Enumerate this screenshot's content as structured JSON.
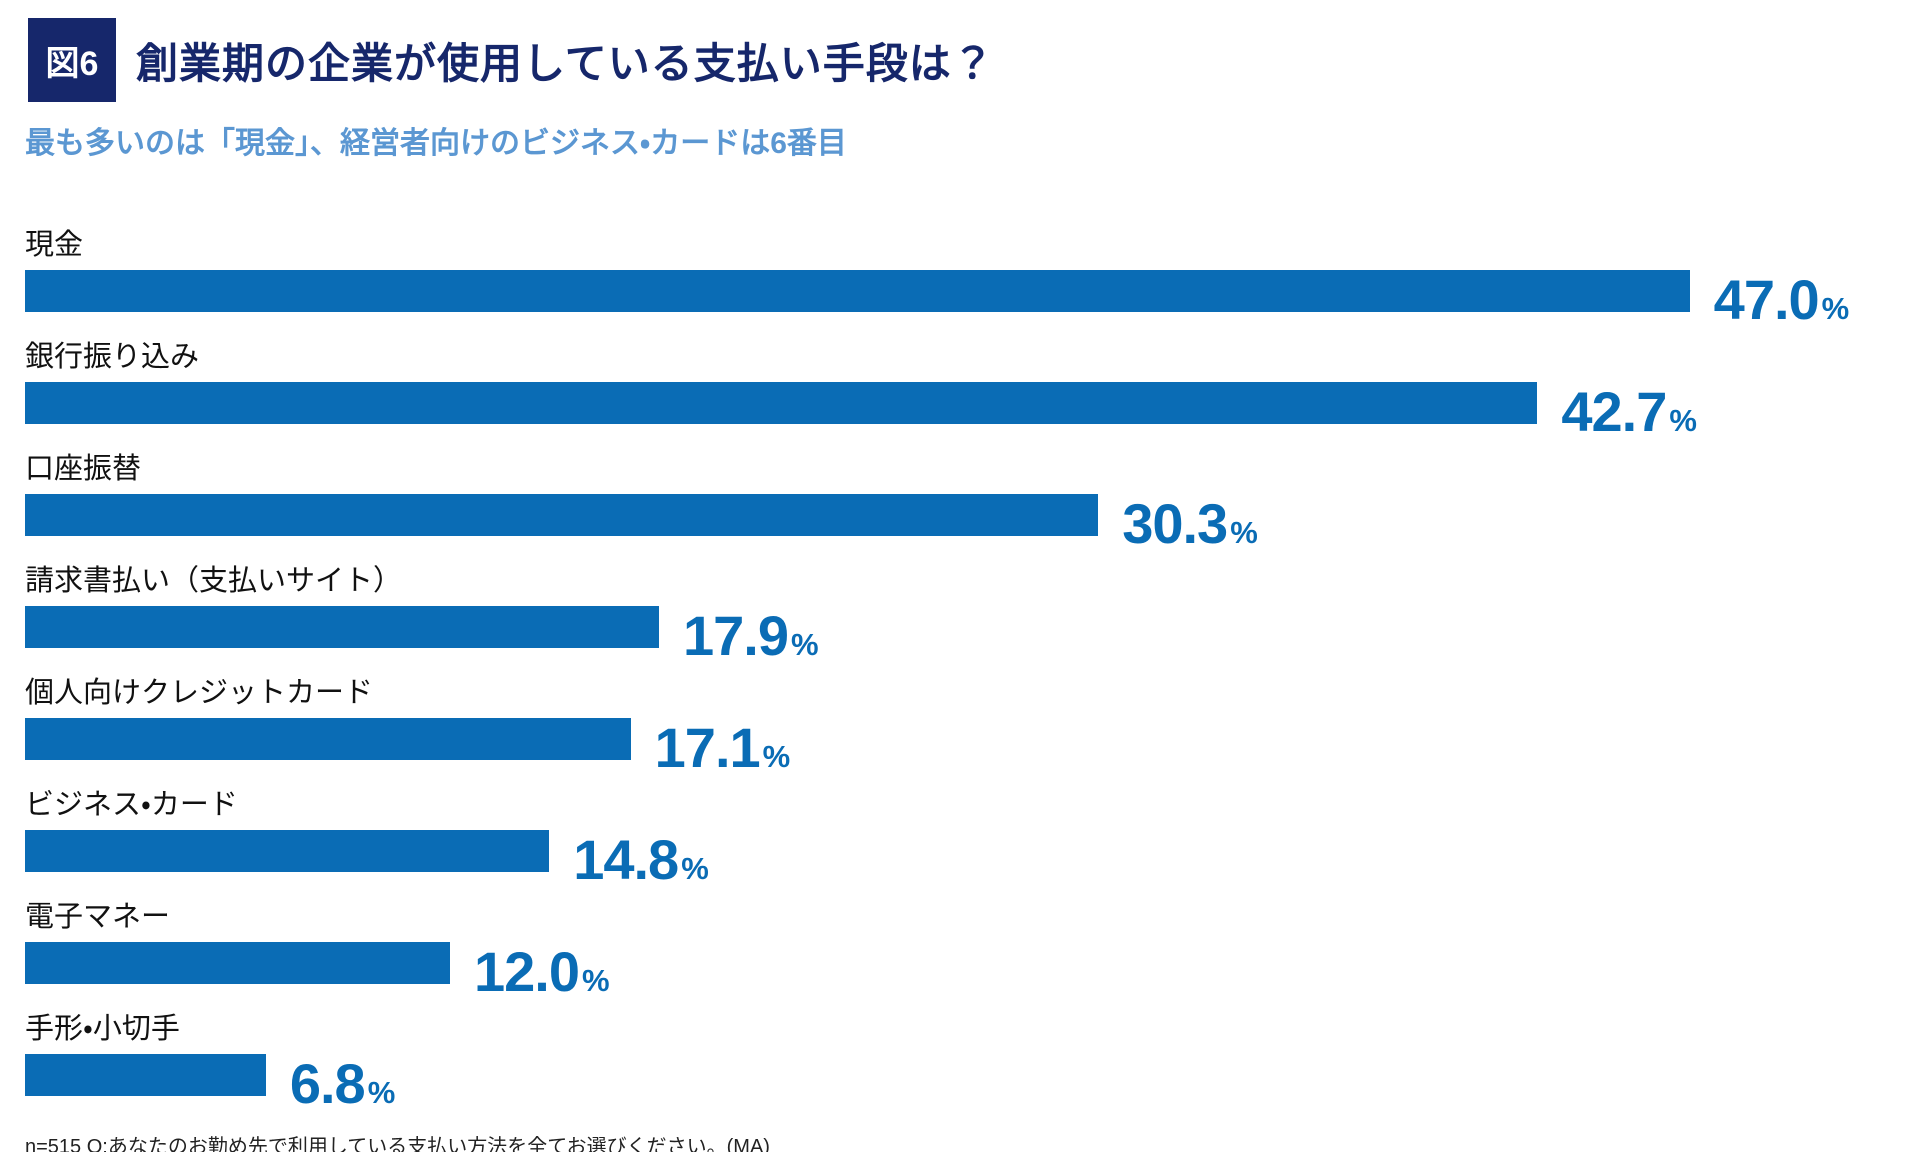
{
  "figure": {
    "badge_label": "図6",
    "title": "創業期の企業が使用している支払い手段は？",
    "subtitle": "最も多いのは「現金」、経営者向けのビジネス・カードは6番目",
    "footnote": "n=515 Q:あなたのお勤め先で利用している支払い方法を全てお選びください。(MA)"
  },
  "colors": {
    "navy": "#16276b",
    "subtitle_blue": "#5b97d2",
    "bar_blue": "#0a6cb5",
    "value_blue": "#0a6cb5"
  },
  "chart_data": {
    "type": "bar",
    "orientation": "horizontal",
    "title": "創業期の企業が使用している支払い手段は？",
    "subtitle": "最も多いのは「現金」、経営者向けのビジネス・カードは6番目",
    "categories": [
      "現金",
      "銀行振り込み",
      "口座振替",
      "請求書払い（支払いサイト）",
      "個人向けクレジットカード",
      "ビジネス・カード",
      "電子マネー",
      "手形・小切手"
    ],
    "values": [
      47.0,
      42.7,
      30.3,
      17.9,
      17.1,
      14.8,
      12.0,
      6.8
    ],
    "value_labels": [
      "47.0",
      "42.7",
      "30.3",
      "17.9",
      "17.1",
      "14.8",
      "12.0",
      "6.8"
    ],
    "unit": "%",
    "xlim": [
      0,
      50
    ],
    "grid": false,
    "legend": false,
    "sample_note": "n=515",
    "question": "Q:あなたのお勤め先で利用している支払い方法を全てお選びください。(MA)",
    "multiple_answer": true
  }
}
